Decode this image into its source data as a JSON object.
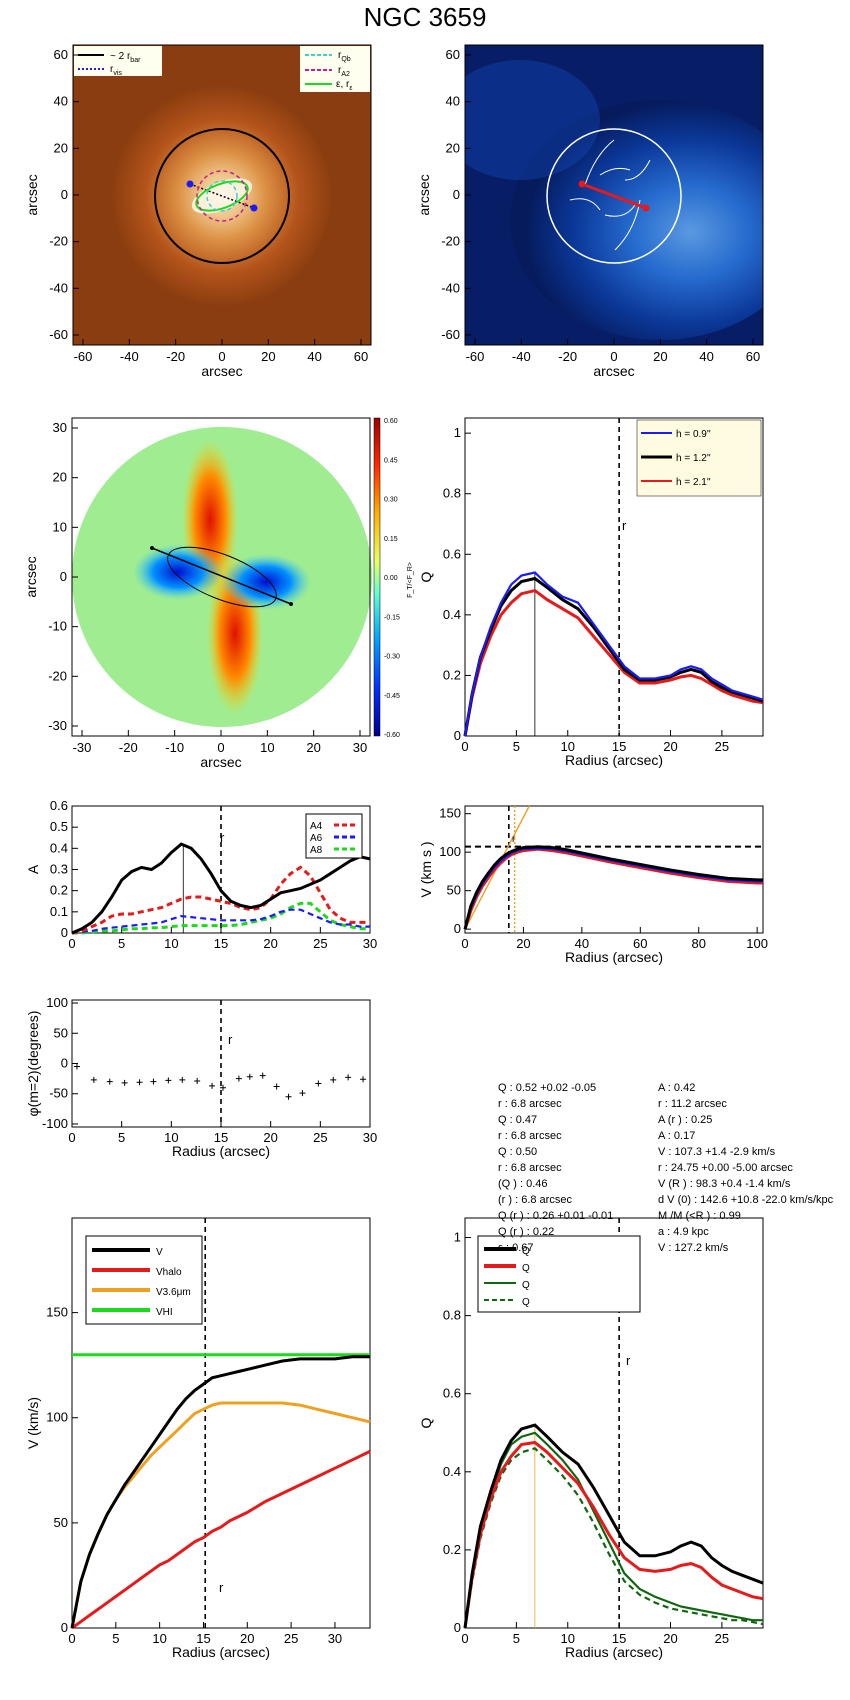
{
  "title": "NGC 3659",
  "panels": {
    "image": {
      "xlabel": "arcsec",
      "ylabel": "arcsec",
      "ticks": [
        "-60",
        "-40",
        "-20",
        "0",
        "20",
        "40",
        "60"
      ],
      "legend_left": [
        "~ 2 r",
        "r"
      ],
      "legend_left_sub": [
        "bar",
        "vis"
      ],
      "legend_right": [
        "r",
        "r",
        "ε, r"
      ],
      "legend_right_sub": [
        "Qb",
        "A2",
        "ε"
      ]
    },
    "residual": {
      "xlabel": "arcsec",
      "ylabel": "arcsec",
      "ticks": [
        "-60",
        "-40",
        "-20",
        "0",
        "20",
        "40",
        "60"
      ]
    },
    "force": {
      "xlabel": "arcsec",
      "ylabel": "arcsec",
      "ticks": [
        "-30",
        "-20",
        "-10",
        "0",
        "10",
        "20",
        "30"
      ],
      "colorbar_ticks": [
        "0.60",
        "0.45",
        "0.30",
        "0.15",
        "0.00",
        "-0.15",
        "-0.30",
        "-0.45",
        "-0.60"
      ],
      "colorbar_label": "F_T/<F_R>"
    },
    "a2_panel": {
      "rbar_label": "r",
      "rbar_sub": "bar"
    }
  },
  "colors": {
    "blue": "#1a1aff",
    "black": "#000000",
    "red": "#e61a1a",
    "green": "#1adb1a",
    "orange": "#f0a020",
    "darkgreen": "#116611",
    "cyan": "#40d0d0",
    "magenta": "#c02090"
  },
  "params": {
    "left": [
      "Q : 0.52 +0.02 -0.05",
      "r : 6.8 arcsec",
      "Q : 0.47",
      "r : 6.8 arcsec",
      "Q : 0.50",
      "r : 6.8 arcsec",
      "(Q ) : 0.46",
      "(r ) : 6.8 arcsec",
      "Q (r ) : 0.26 +0.01 -0.01",
      "Q (r ) : 0.22",
      "ε : 0.67"
    ],
    "right": [
      "A : 0.42",
      "r : 11.2 arcsec",
      "A (r ) : 0.25",
      "A : 0.17",
      "V : 107.3 +1.4 -2.9 km/s",
      "r : 24.75 +0.00 -5.00 arcsec",
      "V (R ) : 98.3 +0.4 -1.4 km/s",
      "d V (0) : 142.6 +10.8 -22.0 km/s/kpc",
      "M /M (<R ) : 0.99",
      "a : 4.9 kpc",
      "V : 127.2 km/s"
    ]
  },
  "chart_data": [
    {
      "type": "line",
      "id": "qt_vs_hz",
      "xlabel": "Radius (arcsec)",
      "ylabel": "Q",
      "xlim": [
        0,
        29
      ],
      "ylim": [
        0,
        1.05
      ],
      "xticks": [
        0,
        5,
        10,
        15,
        20,
        25
      ],
      "yticks": [
        0.0,
        0.2,
        0.4,
        0.6,
        0.8,
        1.0
      ],
      "vline": 15,
      "peak_line": 6.8,
      "rbar_label": "r",
      "legend": [
        "h = 0.9''",
        "h = 1.2''",
        "h = 2.1''"
      ],
      "x": [
        0,
        0.7,
        1.5,
        2.5,
        3.5,
        4.5,
        5.5,
        6.8,
        8,
        9.5,
        11,
        12.5,
        14,
        15.5,
        17,
        18.5,
        20,
        21,
        22,
        23,
        24,
        25,
        26,
        27,
        28,
        29
      ],
      "series": [
        {
          "name": "0.9",
          "color": "blue",
          "values": [
            0,
            0.14,
            0.26,
            0.36,
            0.44,
            0.5,
            0.53,
            0.54,
            0.5,
            0.46,
            0.44,
            0.37,
            0.3,
            0.23,
            0.19,
            0.19,
            0.2,
            0.22,
            0.23,
            0.22,
            0.19,
            0.17,
            0.15,
            0.14,
            0.13,
            0.12
          ]
        },
        {
          "name": "1.2",
          "color": "black",
          "values": [
            0,
            0.14,
            0.26,
            0.35,
            0.43,
            0.48,
            0.51,
            0.52,
            0.49,
            0.45,
            0.42,
            0.36,
            0.29,
            0.22,
            0.185,
            0.185,
            0.195,
            0.21,
            0.22,
            0.21,
            0.18,
            0.16,
            0.145,
            0.135,
            0.125,
            0.115
          ]
        },
        {
          "name": "2.1",
          "color": "red",
          "values": [
            0,
            0.13,
            0.24,
            0.33,
            0.4,
            0.44,
            0.47,
            0.48,
            0.45,
            0.42,
            0.39,
            0.33,
            0.27,
            0.21,
            0.175,
            0.175,
            0.185,
            0.195,
            0.2,
            0.19,
            0.17,
            0.15,
            0.135,
            0.125,
            0.115,
            0.11
          ]
        }
      ]
    },
    {
      "type": "line",
      "id": "fourier_amplitudes",
      "xlabel": "",
      "ylabel": "A",
      "xlim": [
        0,
        30
      ],
      "ylim": [
        0,
        0.6
      ],
      "xticks": [
        0,
        5,
        10,
        15,
        20,
        25,
        30
      ],
      "yticks": [
        0.0,
        0.1,
        0.2,
        0.3,
        0.4,
        0.5,
        0.6
      ],
      "vline": 15,
      "peak_line": 11.2,
      "legend": [
        "A",
        "A",
        "A"
      ],
      "legend_sub": [
        "4",
        "6",
        "8"
      ],
      "x": [
        0,
        1,
        2,
        3,
        4,
        5,
        6,
        7,
        8,
        9,
        10,
        11,
        12,
        13,
        14,
        15,
        16,
        17,
        18,
        19,
        20,
        21,
        22,
        23,
        24,
        25,
        26,
        27,
        28,
        29,
        30
      ],
      "series": [
        {
          "name": "A2",
          "color": "black",
          "dashed": false,
          "values": [
            0.0,
            0.02,
            0.05,
            0.1,
            0.17,
            0.25,
            0.29,
            0.31,
            0.3,
            0.33,
            0.38,
            0.42,
            0.4,
            0.35,
            0.28,
            0.2,
            0.15,
            0.13,
            0.12,
            0.13,
            0.16,
            0.19,
            0.2,
            0.21,
            0.23,
            0.25,
            0.28,
            0.31,
            0.34,
            0.36,
            0.35
          ]
        },
        {
          "name": "A4",
          "color": "red",
          "dashed": true,
          "values": [
            0.0,
            0.01,
            0.03,
            0.05,
            0.08,
            0.09,
            0.09,
            0.1,
            0.11,
            0.12,
            0.14,
            0.16,
            0.17,
            0.17,
            0.16,
            0.15,
            0.14,
            0.12,
            0.11,
            0.12,
            0.16,
            0.23,
            0.28,
            0.31,
            0.27,
            0.19,
            0.11,
            0.07,
            0.05,
            0.05,
            0.05
          ]
        },
        {
          "name": "A6",
          "color": "blue",
          "dashed": true,
          "values": [
            0.0,
            0.005,
            0.01,
            0.02,
            0.025,
            0.03,
            0.035,
            0.04,
            0.045,
            0.05,
            0.065,
            0.08,
            0.075,
            0.07,
            0.065,
            0.06,
            0.06,
            0.06,
            0.06,
            0.065,
            0.08,
            0.1,
            0.11,
            0.11,
            0.09,
            0.07,
            0.05,
            0.04,
            0.04,
            0.03,
            0.03
          ]
        },
        {
          "name": "A8",
          "color": "green",
          "dashed": true,
          "values": [
            0.0,
            0.0,
            0.005,
            0.01,
            0.01,
            0.015,
            0.02,
            0.02,
            0.025,
            0.025,
            0.03,
            0.035,
            0.035,
            0.035,
            0.035,
            0.035,
            0.035,
            0.04,
            0.05,
            0.06,
            0.07,
            0.09,
            0.12,
            0.14,
            0.14,
            0.1,
            0.06,
            0.04,
            0.03,
            0.02,
            0.02
          ]
        }
      ]
    },
    {
      "type": "line",
      "id": "rotation_curve",
      "xlabel": "Radius (arcsec)",
      "ylabel": "V (km s )",
      "xlim": [
        0,
        102
      ],
      "ylim": [
        -5,
        160
      ],
      "xticks": [
        0,
        20,
        40,
        60,
        80,
        100
      ],
      "yticks": [
        0,
        50,
        100,
        150
      ],
      "hline": 107.3,
      "vline": 15,
      "vline2": 17,
      "x": [
        0,
        2,
        4,
        6,
        8,
        10,
        12,
        14,
        16,
        18,
        20,
        25,
        30,
        35,
        40,
        50,
        60,
        70,
        80,
        90,
        100,
        102
      ],
      "series": [
        {
          "name": "V3.6",
          "color": "black",
          "values": [
            0,
            30,
            48,
            62,
            73,
            83,
            91,
            97,
            101,
            104,
            106,
            107,
            106,
            103,
            99,
            91,
            84,
            77,
            71,
            66,
            64,
            64
          ]
        },
        {
          "name": "V3.6 err",
          "color": "blue",
          "values": [
            0,
            27,
            45,
            59,
            70,
            80,
            88,
            94,
            99,
            102,
            104,
            105,
            104,
            101,
            97,
            89,
            82,
            75,
            69,
            64,
            62,
            62
          ]
        },
        {
          "name": "V3.6 err",
          "color": "red",
          "values": [
            0,
            24,
            42,
            56,
            67,
            77,
            85,
            92,
            97,
            100,
            102,
            104,
            102,
            99,
            95,
            87,
            80,
            73,
            67,
            62,
            60,
            60
          ]
        }
      ],
      "inner_slope": {
        "x": [
          0,
          22
        ],
        "y": [
          0,
          160
        ]
      }
    },
    {
      "type": "scatter",
      "id": "phase",
      "xlabel": "Radius (arcsec)",
      "ylabel": "φ(m=2)(degrees)",
      "xlim": [
        0,
        30
      ],
      "ylim": [
        -105,
        105
      ],
      "xticks": [
        0,
        5,
        10,
        15,
        20,
        25,
        30
      ],
      "yticks": [
        -100,
        -50,
        0,
        50,
        100
      ],
      "vline": 15,
      "x": [
        0.5,
        2.2,
        3.8,
        5.3,
        6.8,
        8.2,
        9.7,
        11.1,
        12.6,
        14.1,
        15.2,
        16.8,
        17.9,
        19.2,
        20.6,
        21.8,
        23.2,
        24.8,
        26.3,
        27.8,
        29.3
      ],
      "values": [
        -5,
        -27,
        -30,
        -32,
        -31,
        -30,
        -28,
        -27,
        -29,
        -37,
        -40,
        -25,
        -22,
        -20,
        -38,
        -55,
        -49,
        -33,
        -27,
        -23,
        -26
      ]
    },
    {
      "type": "line",
      "id": "velocity_components",
      "xlabel": "Radius (arcsec)",
      "ylabel": "V (km/s)",
      "xlim": [
        0,
        34
      ],
      "ylim": [
        0,
        195
      ],
      "xticks": [
        0,
        5,
        10,
        15,
        20,
        25,
        30
      ],
      "yticks": [
        0,
        50,
        100,
        150
      ],
      "vline": 15.2,
      "rbar_label": "r",
      "legend": [
        "V",
        "V",
        "V",
        "V"
      ],
      "legend_sub": [
        "",
        "halo",
        "3.6μm",
        "HI"
      ],
      "x": [
        0,
        1,
        2,
        3,
        4,
        5,
        6,
        7,
        8,
        9,
        10,
        11,
        12,
        13,
        14,
        15,
        16,
        17,
        18,
        19,
        20,
        22,
        24,
        26,
        28,
        30,
        32,
        34
      ],
      "series": [
        {
          "name": "V",
          "color": "black",
          "values": [
            0,
            22,
            35,
            45,
            54,
            61,
            68,
            74,
            80,
            86,
            92,
            98,
            104,
            109,
            113,
            116,
            119,
            120,
            121,
            122,
            123,
            125,
            127,
            128,
            128,
            128,
            129,
            129
          ]
        },
        {
          "name": "Vhalo",
          "color": "red",
          "values": [
            0,
            3,
            6,
            9,
            12,
            15,
            18,
            21,
            24,
            27,
            30,
            32,
            35,
            38,
            41,
            43,
            46,
            48,
            51,
            53,
            55,
            60,
            64,
            68,
            72,
            76,
            80,
            84
          ]
        },
        {
          "name": "V3.6",
          "color": "orange",
          "values": [
            0,
            22,
            35,
            45,
            54,
            61,
            67,
            72,
            77,
            82,
            86,
            90,
            94,
            98,
            102,
            104,
            106,
            107,
            107,
            107,
            107,
            107,
            107,
            106,
            104,
            102,
            100,
            98
          ]
        },
        {
          "name": "VHI",
          "color": "green",
          "values": [
            130,
            130,
            130,
            130,
            130,
            130,
            130,
            130,
            130,
            130,
            130,
            130,
            130,
            130,
            130,
            130,
            130,
            130,
            130,
            130,
            130,
            130,
            130,
            130,
            130,
            130,
            130,
            130
          ]
        }
      ]
    },
    {
      "type": "line",
      "id": "qt_halo_corr",
      "xlabel": "Radius (arcsec)",
      "ylabel": "Q",
      "xlim": [
        0,
        29
      ],
      "ylim": [
        0,
        1.05
      ],
      "xticks": [
        0,
        5,
        10,
        15,
        20,
        25
      ],
      "yticks": [
        0.0,
        0.2,
        0.4,
        0.6,
        0.8,
        1.0
      ],
      "vline": 15,
      "peak_line": 6.8,
      "rbar_label": "r",
      "legend": [
        "Q",
        "Q",
        "Q",
        "Q"
      ],
      "x": [
        0,
        0.7,
        1.5,
        2.5,
        3.5,
        4.5,
        5.5,
        6.8,
        8,
        9.5,
        11,
        12.5,
        14,
        15.5,
        17,
        18.5,
        20,
        21,
        22,
        23,
        24,
        25,
        26,
        27,
        28,
        29
      ],
      "series": [
        {
          "name": "QT",
          "color": "black",
          "dashed": false,
          "values": [
            0,
            0.14,
            0.26,
            0.35,
            0.43,
            0.48,
            0.51,
            0.52,
            0.49,
            0.45,
            0.42,
            0.36,
            0.29,
            0.22,
            0.185,
            0.185,
            0.195,
            0.21,
            0.22,
            0.21,
            0.18,
            0.16,
            0.145,
            0.135,
            0.125,
            0.115
          ]
        },
        {
          "name": "QT halo-corr",
          "color": "red",
          "dashed": false,
          "values": [
            0,
            0.13,
            0.24,
            0.33,
            0.4,
            0.44,
            0.47,
            0.475,
            0.45,
            0.41,
            0.37,
            0.31,
            0.24,
            0.18,
            0.15,
            0.145,
            0.15,
            0.16,
            0.165,
            0.155,
            0.13,
            0.11,
            0.1,
            0.09,
            0.08,
            0.075
          ]
        },
        {
          "name": "QT bar-only",
          "color": "darkgreen",
          "dashed": false,
          "values": [
            0,
            0.13,
            0.25,
            0.34,
            0.42,
            0.47,
            0.49,
            0.5,
            0.47,
            0.43,
            0.38,
            0.3,
            0.22,
            0.14,
            0.1,
            0.08,
            0.065,
            0.055,
            0.05,
            0.045,
            0.04,
            0.035,
            0.03,
            0.025,
            0.02,
            0.02
          ]
        },
        {
          "name": "QT bar-only&halo-corr",
          "color": "darkgreen",
          "dashed": true,
          "values": [
            0,
            0.12,
            0.23,
            0.32,
            0.39,
            0.43,
            0.45,
            0.46,
            0.43,
            0.39,
            0.34,
            0.27,
            0.19,
            0.12,
            0.085,
            0.065,
            0.05,
            0.045,
            0.04,
            0.035,
            0.03,
            0.025,
            0.02,
            0.02,
            0.015,
            0.01
          ]
        }
      ]
    }
  ]
}
